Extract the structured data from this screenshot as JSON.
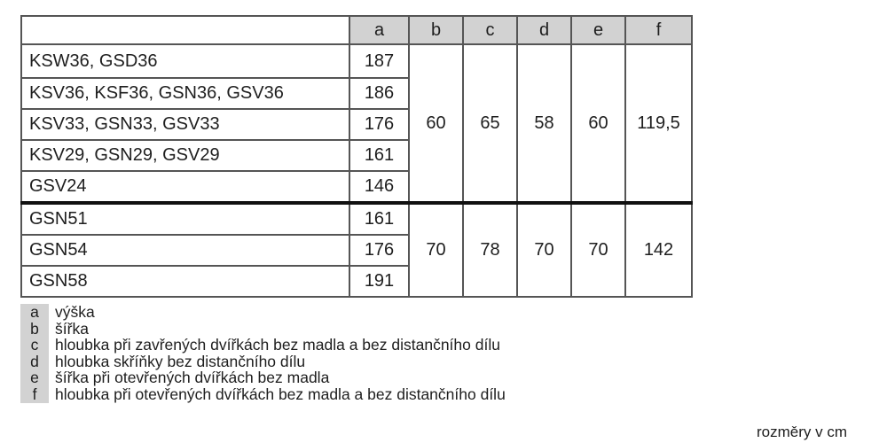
{
  "table": {
    "headers": [
      "",
      "a",
      "b",
      "c",
      "d",
      "e",
      "f"
    ],
    "groups": [
      {
        "rows": [
          {
            "models": "KSW36, GSD36",
            "a": "187"
          },
          {
            "models": "KSV36, KSF36, GSN36, GSV36",
            "a": "186"
          },
          {
            "models": "KSV33, GSN33, GSV33",
            "a": "176"
          },
          {
            "models": "KSV29, GSN29, GSV29",
            "a": "161"
          },
          {
            "models": "GSV24",
            "a": "146"
          }
        ],
        "b": "60",
        "c": "65",
        "d": "58",
        "e": "60",
        "f": "119,5"
      },
      {
        "rows": [
          {
            "models": "GSN51",
            "a": "161"
          },
          {
            "models": "GSN54",
            "a": "176"
          },
          {
            "models": "GSN58",
            "a": "191"
          }
        ],
        "b": "70",
        "c": "78",
        "d": "70",
        "e": "70",
        "f": "142"
      }
    ]
  },
  "legend": [
    {
      "key": "a",
      "text": "výška"
    },
    {
      "key": "b",
      "text": "šířka"
    },
    {
      "key": "c",
      "text": "hloubka při zavřených dvířkách bez madla a bez distančního dílu"
    },
    {
      "key": "d",
      "text": "hloubka skříňky bez distančního dílu"
    },
    {
      "key": "e",
      "text": "šířka při otevřených dvířkách bez madla"
    },
    {
      "key": "f",
      "text": "hloubka při otevřených dvířkách bez madla a bez distančního dílu"
    }
  ],
  "units_note": "rozměry v cm"
}
